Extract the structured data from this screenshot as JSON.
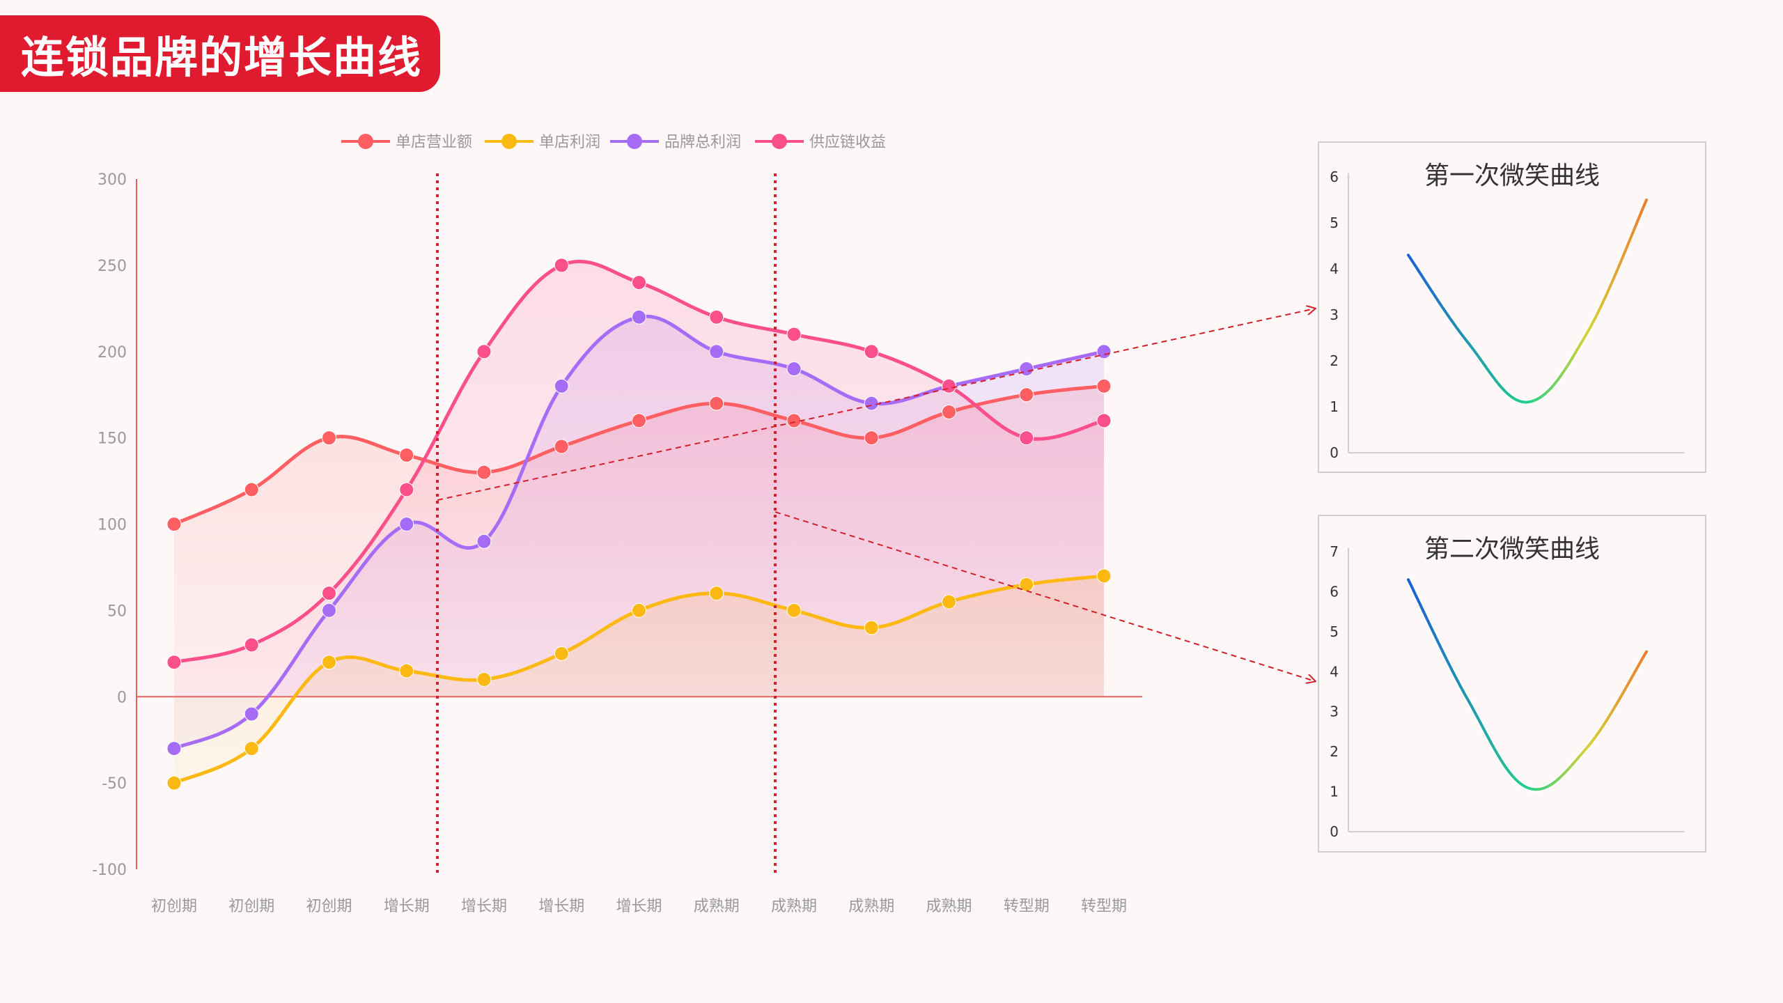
{
  "title": "连锁品牌的增长曲线",
  "colors": {
    "background": "#fdf7f7",
    "banner": "#e01b2f",
    "axis": "#e86060",
    "divider": "#d2202a",
    "revenue": "#ff5e62",
    "profit": "#fdb913",
    "brand_profit": "#a66cf5",
    "supply_chain": "#fb4f8c"
  },
  "chart_data": [
    {
      "type": "line",
      "title": "",
      "xlabel": "",
      "ylabel": "",
      "ylim": [
        -100,
        300
      ],
      "yticks": [
        "300",
        "250",
        "200",
        "150",
        "100",
        "50",
        "0",
        "-50",
        "-100"
      ],
      "categories": [
        "初创期",
        "初创期",
        "初创期",
        "增长期",
        "增长期",
        "增长期",
        "增长期",
        "成熟期",
        "成熟期",
        "成熟期",
        "成熟期",
        "转型期",
        "转型期"
      ],
      "legend_position": "top-center",
      "series": [
        {
          "name": "单店营业额",
          "color": "#ff5e62",
          "values": [
            100,
            120,
            150,
            140,
            130,
            145,
            160,
            170,
            160,
            150,
            165,
            175,
            180
          ]
        },
        {
          "name": "单店利润",
          "color": "#fdb913",
          "values": [
            -50,
            -30,
            20,
            15,
            10,
            25,
            50,
            60,
            50,
            40,
            55,
            65,
            70
          ]
        },
        {
          "name": "品牌总利润",
          "color": "#a66cf5",
          "values": [
            -30,
            -10,
            50,
            100,
            90,
            180,
            220,
            200,
            190,
            170,
            180,
            190,
            200
          ]
        },
        {
          "name": "供应链收益",
          "color": "#fb4f8c",
          "values": [
            20,
            30,
            60,
            120,
            200,
            250,
            240,
            220,
            210,
            200,
            180,
            150,
            160
          ]
        }
      ],
      "dividers_after_index": [
        3.4,
        7.75
      ]
    },
    {
      "type": "line",
      "title": "第一次微笑曲线",
      "ylim": [
        0,
        6
      ],
      "yticks": [
        "6",
        "5",
        "4",
        "3",
        "2",
        "1",
        "0"
      ],
      "series": [
        {
          "x": [
            0,
            0.25,
            0.5,
            0.75,
            1
          ],
          "values": [
            4.3,
            2.4,
            1.1,
            2.6,
            5.5
          ]
        }
      ]
    },
    {
      "type": "line",
      "title": "第二次微笑曲线",
      "ylim": [
        0,
        7
      ],
      "yticks": [
        "7",
        "6",
        "5",
        "4",
        "3",
        "2",
        "1",
        "0"
      ],
      "series": [
        {
          "x": [
            0,
            0.25,
            0.5,
            0.75,
            1
          ],
          "values": [
            6.3,
            3.3,
            1.1,
            2.1,
            4.5
          ]
        }
      ]
    }
  ]
}
